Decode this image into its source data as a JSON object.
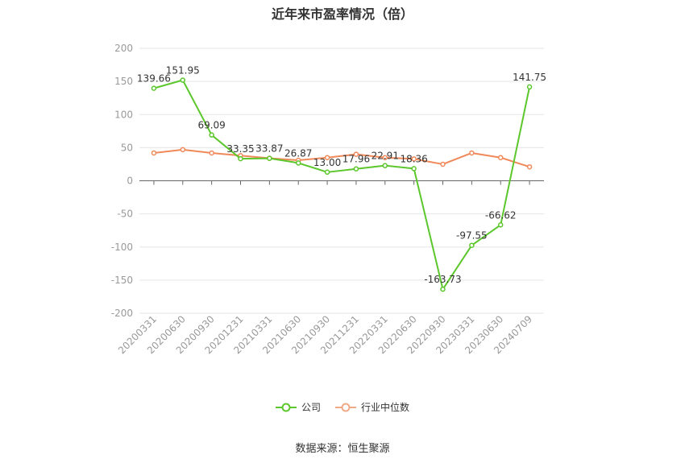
{
  "chart_data": {
    "type": "line",
    "title": "近年来市盈率情况（倍）",
    "categories": [
      "20200331",
      "20200630",
      "20200930",
      "20201231",
      "20210331",
      "20210630",
      "20210930",
      "20211231",
      "20220331",
      "20220630",
      "20220930",
      "20230331",
      "20230630",
      "20240709"
    ],
    "ylim": [
      -200,
      200
    ],
    "yticks": [
      200,
      150,
      100,
      50,
      0,
      -50,
      -100,
      -150,
      -200
    ],
    "grid": true,
    "legend_position": "bottom",
    "series": [
      {
        "name": "公司",
        "color": "#5cc72c",
        "values": [
          139.66,
          151.95,
          69.09,
          33.35,
          33.87,
          26.87,
          13.0,
          17.96,
          22.91,
          18.36,
          -163.73,
          -97.55,
          -66.62,
          141.75
        ],
        "labels": [
          "139.66",
          "151.95",
          "69.09",
          "33.35",
          "33.87",
          "26.87",
          "13.00",
          "17.96",
          "22.91",
          "18.36",
          "-163.73",
          "-97.55",
          "-66.62",
          "141.75"
        ]
      },
      {
        "name": "行业中位数",
        "color": "#f0895a",
        "values": [
          42,
          47,
          42,
          38,
          34,
          31,
          35,
          40,
          35,
          33,
          25,
          42,
          35,
          21
        ]
      }
    ]
  },
  "source_text": "数据来源：恒生聚源"
}
